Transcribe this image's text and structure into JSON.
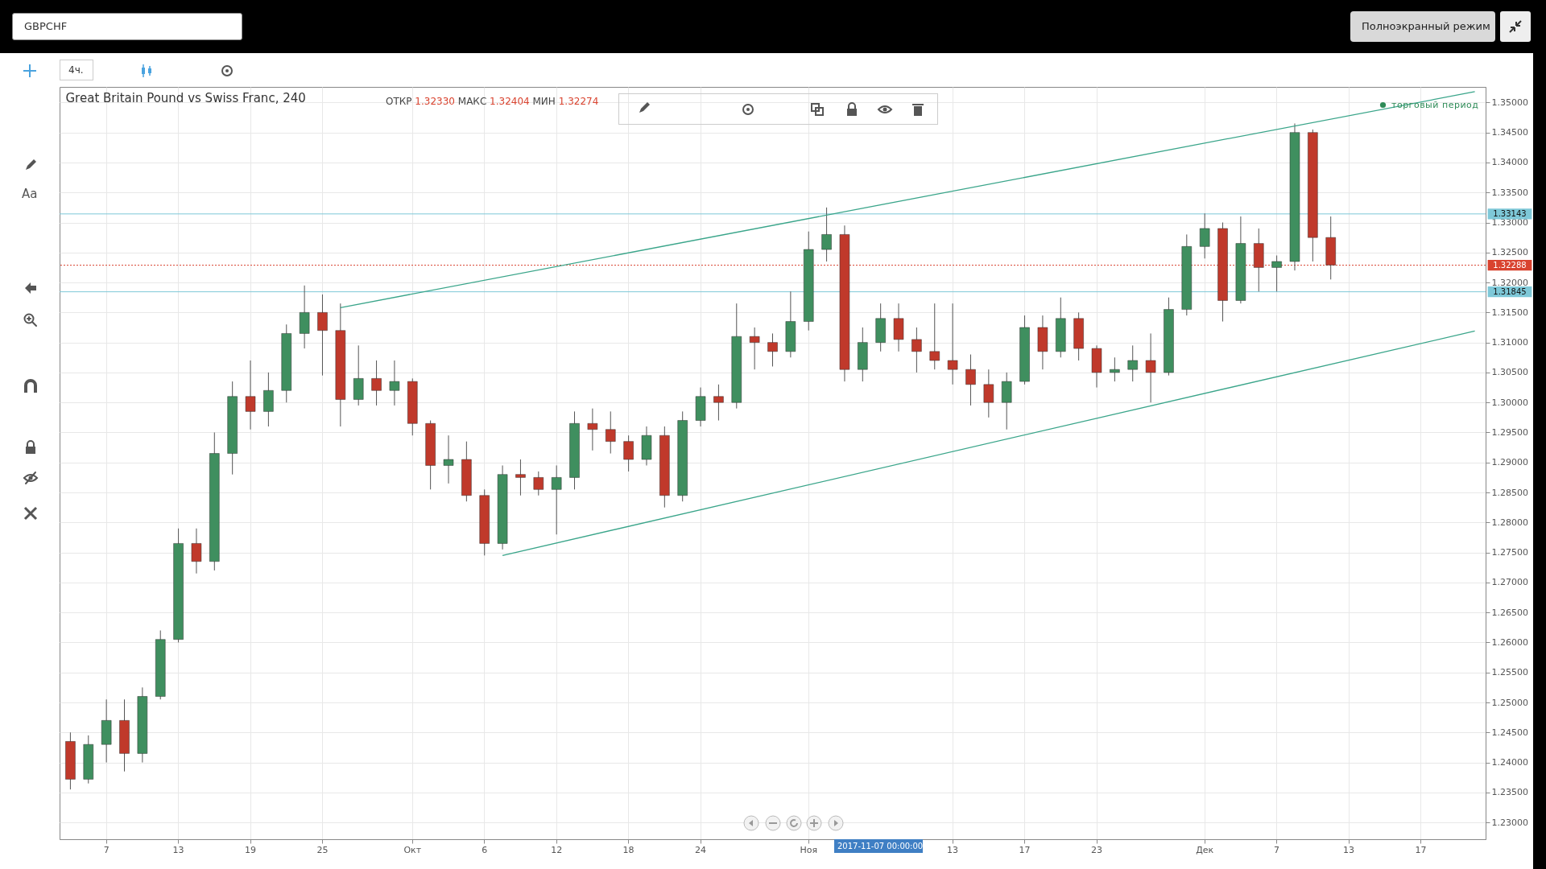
{
  "chart_data": {
    "type": "candlestick",
    "title": "Great Britain Pound vs Swiss Franc, 240",
    "categories": [
      null,
      null,
      "7",
      null,
      null,
      null,
      "13",
      null,
      null,
      null,
      "19",
      null,
      null,
      null,
      "25",
      null,
      null,
      null,
      null,
      "Окт",
      null,
      null,
      null,
      "6",
      null,
      null,
      null,
      "12",
      null,
      null,
      null,
      "18",
      null,
      null,
      null,
      "24",
      null,
      null,
      null,
      null,
      null,
      "Ноя",
      null,
      null,
      null,
      null,
      null,
      null,
      null,
      "13",
      null,
      null,
      null,
      "17",
      null,
      null,
      null,
      "23",
      null,
      null,
      null,
      null,
      null,
      "Дек",
      null,
      null,
      null,
      "7",
      null,
      null,
      null,
      "13",
      null,
      null,
      null,
      "17",
      null,
      null,
      null
    ],
    "ohlc": [
      [
        1.2435,
        1.245,
        1.2355,
        1.2372
      ],
      [
        1.2372,
        1.2445,
        1.2365,
        1.243
      ],
      [
        1.243,
        1.2505,
        1.24,
        1.247
      ],
      [
        1.247,
        1.2505,
        1.2385,
        1.2415
      ],
      [
        1.2415,
        1.2525,
        1.24,
        1.251
      ],
      [
        1.251,
        1.262,
        1.2505,
        1.2605
      ],
      [
        1.2605,
        1.279,
        1.26,
        1.2765
      ],
      [
        1.2765,
        1.279,
        1.2715,
        1.2735
      ],
      [
        1.2735,
        1.295,
        1.272,
        1.2915
      ],
      [
        1.2915,
        1.3035,
        1.288,
        1.301
      ],
      [
        1.301,
        1.307,
        1.2955,
        1.2985
      ],
      [
        1.2985,
        1.305,
        1.296,
        1.302
      ],
      [
        1.302,
        1.313,
        1.3,
        1.3115
      ],
      [
        1.3115,
        1.3195,
        1.309,
        1.315
      ],
      [
        1.315,
        1.318,
        1.3045,
        1.312
      ],
      [
        1.312,
        1.3165,
        1.296,
        1.3005
      ],
      [
        1.3005,
        1.3095,
        1.2995,
        1.304
      ],
      [
        1.304,
        1.307,
        1.2995,
        1.302
      ],
      [
        1.302,
        1.307,
        1.2995,
        1.3035
      ],
      [
        1.3035,
        1.304,
        1.2945,
        1.2965
      ],
      [
        1.2965,
        1.297,
        1.2855,
        1.2895
      ],
      [
        1.2895,
        1.2945,
        1.2865,
        1.2905
      ],
      [
        1.2905,
        1.2935,
        1.2835,
        1.2845
      ],
      [
        1.2845,
        1.2855,
        1.2745,
        1.2765
      ],
      [
        1.2765,
        1.2895,
        1.2755,
        1.288
      ],
      [
        1.288,
        1.2905,
        1.2845,
        1.2875
      ],
      [
        1.2875,
        1.2885,
        1.2845,
        1.2855
      ],
      [
        1.2855,
        1.2895,
        1.278,
        1.2875
      ],
      [
        1.2875,
        1.2985,
        1.2855,
        1.2965
      ],
      [
        1.2965,
        1.299,
        1.292,
        1.2955
      ],
      [
        1.2955,
        1.2985,
        1.2915,
        1.2935
      ],
      [
        1.2935,
        1.2945,
        1.2885,
        1.2905
      ],
      [
        1.2905,
        1.296,
        1.2895,
        1.2945
      ],
      [
        1.2945,
        1.296,
        1.2825,
        1.2845
      ],
      [
        1.2845,
        1.2985,
        1.2835,
        1.297
      ],
      [
        1.297,
        1.3025,
        1.296,
        1.301
      ],
      [
        1.301,
        1.303,
        1.297,
        1.3
      ],
      [
        1.3,
        1.3165,
        1.299,
        1.311
      ],
      [
        1.311,
        1.3125,
        1.3055,
        1.31
      ],
      [
        1.31,
        1.3115,
        1.306,
        1.3085
      ],
      [
        1.3085,
        1.3185,
        1.3075,
        1.3135
      ],
      [
        1.3135,
        1.3285,
        1.312,
        1.3255
      ],
      [
        1.3255,
        1.3325,
        1.3235,
        1.328
      ],
      [
        1.328,
        1.3295,
        1.3035,
        1.3055
      ],
      [
        1.3055,
        1.3125,
        1.3035,
        1.31
      ],
      [
        1.31,
        1.3165,
        1.3085,
        1.314
      ],
      [
        1.314,
        1.3165,
        1.3085,
        1.3105
      ],
      [
        1.3105,
        1.3125,
        1.305,
        1.3085
      ],
      [
        1.3085,
        1.3165,
        1.3055,
        1.307
      ],
      [
        1.307,
        1.3165,
        1.303,
        1.3055
      ],
      [
        1.3055,
        1.308,
        1.2995,
        1.303
      ],
      [
        1.303,
        1.3055,
        1.2975,
        1.3
      ],
      [
        1.3,
        1.305,
        1.2955,
        1.3035
      ],
      [
        1.3035,
        1.3145,
        1.303,
        1.3125
      ],
      [
        1.3125,
        1.3145,
        1.3055,
        1.3085
      ],
      [
        1.3085,
        1.3175,
        1.3075,
        1.314
      ],
      [
        1.314,
        1.315,
        1.307,
        1.309
      ],
      [
        1.309,
        1.3095,
        1.3025,
        1.305
      ],
      [
        1.305,
        1.3075,
        1.3035,
        1.3055
      ],
      [
        1.3055,
        1.3095,
        1.3035,
        1.307
      ],
      [
        1.307,
        1.3115,
        1.3,
        1.305
      ],
      [
        1.305,
        1.3175,
        1.3045,
        1.3155
      ],
      [
        1.3155,
        1.328,
        1.3145,
        1.326
      ],
      [
        1.326,
        1.3315,
        1.324,
        1.329
      ],
      [
        1.329,
        1.33,
        1.3135,
        1.317
      ],
      [
        1.317,
        1.331,
        1.3165,
        1.3265
      ],
      [
        1.3265,
        1.329,
        1.3185,
        1.3225
      ],
      [
        1.3225,
        1.3245,
        1.3185,
        1.3235
      ],
      [
        1.3235,
        1.3465,
        1.322,
        1.345
      ],
      [
        1.345,
        1.3455,
        1.3235,
        1.3275
      ],
      [
        1.3275,
        1.331,
        1.3205,
        1.3229
      ],
      null,
      null,
      null,
      null,
      null,
      null,
      null,
      null
    ],
    "colors": [
      "#c0392b",
      "#3f8f5f",
      "#3f8f5f",
      "#c0392b",
      "#3f8f5f",
      "#3f8f5f",
      "#3f8f5f",
      "#c0392b",
      "#3f8f5f",
      "#3f8f5f",
      "#c0392b",
      "#3f8f5f",
      "#3f8f5f",
      "#3f8f5f",
      "#c0392b",
      "#c0392b",
      "#3f8f5f",
      "#c0392b",
      "#3f8f5f",
      "#c0392b",
      "#c0392b",
      "#3f8f5f",
      "#c0392b",
      "#c0392b",
      "#3f8f5f",
      "#c0392b",
      "#c0392b",
      "#3f8f5f",
      "#3f8f5f",
      "#c0392b",
      "#c0392b",
      "#c0392b",
      "#3f8f5f",
      "#c0392b",
      "#3f8f5f",
      "#3f8f5f",
      "#c0392b",
      "#3f8f5f",
      "#c0392b",
      "#c0392b",
      "#3f8f5f",
      "#3f8f5f",
      "#3f8f5f",
      "#c0392b",
      "#3f8f5f",
      "#3f8f5f",
      "#c0392b",
      "#c0392b",
      "#c0392b",
      "#c0392b",
      "#c0392b",
      "#c0392b",
      "#3f8f5f",
      "#3f8f5f",
      "#c0392b",
      "#3f8f5f",
      "#c0392b",
      "#c0392b",
      "#3f8f5f",
      "#3f8f5f",
      "#c0392b",
      "#3f8f5f",
      "#3f8f5f",
      "#3f8f5f",
      "#c0392b",
      "#3f8f5f",
      "#c0392b",
      "#3f8f5f",
      "#3f8f5f",
      "#c0392b",
      "#c0392b",
      null,
      null,
      null,
      null,
      null,
      null,
      null,
      null
    ],
    "series": [
      {
        "type": "line",
        "color": "#3aa58a",
        "values": [
          null,
          null,
          null,
          null,
          null,
          null,
          null,
          null,
          null,
          null,
          null,
          null,
          null,
          null,
          null,
          1.3158,
          null,
          null,
          null,
          null,
          null,
          null,
          null,
          null,
          null,
          null,
          null,
          null,
          null,
          null,
          null,
          null,
          null,
          null,
          null,
          null,
          null,
          null,
          null,
          null,
          null,
          null,
          null,
          null,
          null,
          null,
          null,
          null,
          null,
          null,
          null,
          null,
          null,
          null,
          null,
          null,
          null,
          null,
          null,
          null,
          null,
          null,
          null,
          null,
          null,
          null,
          null,
          null,
          null,
          null,
          null,
          null,
          null,
          null,
          null,
          null,
          null,
          null,
          1.3518
        ]
      },
      {
        "type": "line",
        "color": "#3aa58a",
        "values": [
          null,
          null,
          null,
          null,
          null,
          null,
          null,
          null,
          null,
          null,
          null,
          null,
          null,
          null,
          null,
          null,
          null,
          null,
          null,
          null,
          null,
          null,
          null,
          null,
          1.2745,
          null,
          null,
          null,
          null,
          null,
          null,
          null,
          null,
          null,
          null,
          null,
          null,
          null,
          null,
          null,
          null,
          null,
          null,
          null,
          null,
          null,
          null,
          null,
          null,
          null,
          null,
          null,
          null,
          null,
          null,
          null,
          null,
          null,
          null,
          null,
          null,
          null,
          null,
          null,
          null,
          null,
          null,
          null,
          null,
          null,
          null,
          null,
          null,
          null,
          null,
          null,
          null,
          null,
          1.3119
        ]
      }
    ],
    "ylim": [
      1.2272,
      1.3526
    ],
    "yticks": [
      {
        "value": 1.23,
        "label": "1.23000"
      },
      {
        "value": 1.235,
        "label": "1.23500"
      },
      {
        "value": 1.24,
        "label": "1.24000"
      },
      {
        "value": 1.245,
        "label": "1.24500"
      },
      {
        "value": 1.25,
        "label": "1.25000"
      },
      {
        "value": 1.255,
        "label": "1.25500"
      },
      {
        "value": 1.26,
        "label": "1.26000"
      },
      {
        "value": 1.265,
        "label": "1.26500"
      },
      {
        "value": 1.27,
        "label": "1.27000"
      },
      {
        "value": 1.275,
        "label": "1.27500"
      },
      {
        "value": 1.28,
        "label": "1.28000"
      },
      {
        "value": 1.285,
        "label": "1.28500"
      },
      {
        "value": 1.29,
        "label": "1.29000"
      },
      {
        "value": 1.295,
        "label": "1.29500"
      },
      {
        "value": 1.3,
        "label": "1.30000"
      },
      {
        "value": 1.305,
        "label": "1.30500"
      },
      {
        "value": 1.31,
        "label": "1.31000"
      },
      {
        "value": 1.315,
        "label": "1.31500"
      },
      {
        "value": 1.32,
        "label": "1.32000"
      },
      {
        "value": 1.325,
        "label": "1.32500"
      },
      {
        "value": 1.33,
        "label": "1.33000"
      },
      {
        "value": 1.335,
        "label": "1.33500"
      },
      {
        "value": 1.34,
        "label": "1.34000"
      },
      {
        "value": 1.345,
        "label": "1.34500"
      },
      {
        "value": 1.35,
        "label": "1.35000"
      }
    ],
    "grid": true,
    "ref_lines": [
      {
        "axis": "y",
        "value": 1.33143,
        "label": "1.33143",
        "color": "#7ec8d8",
        "line_style": "solid"
      },
      {
        "axis": "y",
        "value": 1.31845,
        "label": "1.31845",
        "color": "#7ec8d8",
        "line_style": "solid"
      },
      {
        "axis": "y",
        "value": 1.32288,
        "label": "1.32288",
        "color": "#d9432f",
        "line_style": "dotted"
      }
    ],
    "annotations": [
      "GBPCHF",
      "Полноэкранный режим",
      "4ч.",
      "ОТКР 1.32330 МАКС 1.32404 МИН 1.32274",
      "торговый период",
      "Aa",
      "2017-11-07 00:00:00"
    ]
  }
}
